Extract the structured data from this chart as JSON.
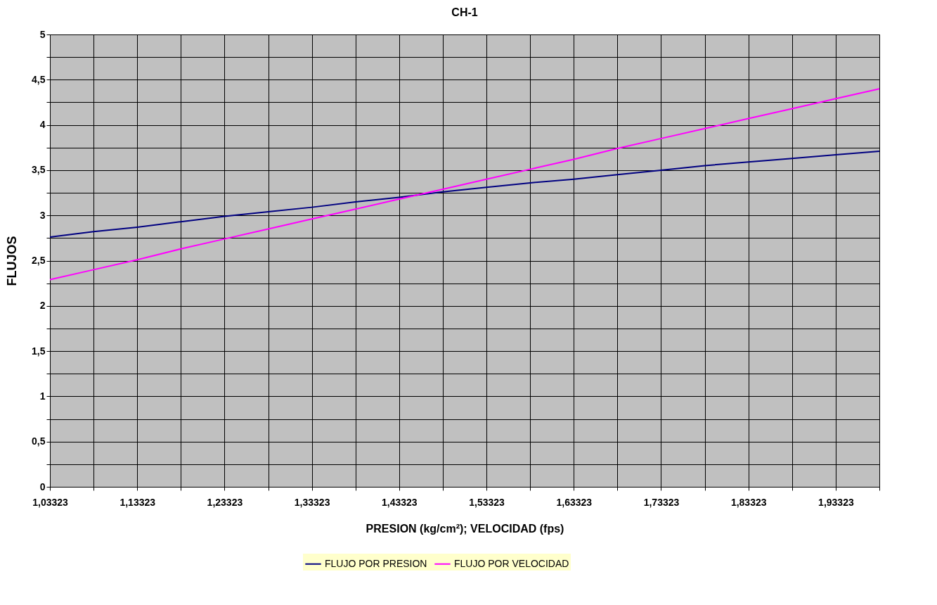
{
  "chart_data": {
    "type": "line",
    "title": "CH-1",
    "xlabel": "PRESION (kg/cm²); VELOCIDAD (fps)",
    "ylabel": "FLUJOS",
    "categories": [
      "1,03323",
      null,
      "1,13323",
      null,
      "1,23323",
      null,
      "1,33323",
      null,
      "1,43323",
      null,
      "1,53323",
      null,
      "1,63323",
      null,
      "1,73323",
      null,
      "1,83323",
      null,
      "1,93323",
      null
    ],
    "series": [
      {
        "name": "FLUJO POR PRESION",
        "color": "#000080",
        "values": [
          2.76,
          2.82,
          2.87,
          2.93,
          2.99,
          3.04,
          3.09,
          3.15,
          3.2,
          3.26,
          3.31,
          3.36,
          3.4,
          3.45,
          3.5,
          3.55,
          3.59,
          3.63,
          3.67,
          3.71
        ]
      },
      {
        "name": "FLUJO POR VELOCIDAD",
        "color": "#ff00ff",
        "values": [
          2.29,
          2.4,
          2.51,
          2.63,
          2.74,
          2.85,
          2.96,
          3.07,
          3.18,
          3.29,
          3.4,
          3.51,
          3.62,
          3.74,
          3.85,
          3.96,
          4.07,
          4.18,
          4.29,
          4.4
        ]
      }
    ],
    "ylim": [
      0,
      5
    ],
    "yticks": [
      0,
      {
        "value": 0.25,
        "label": null
      },
      {
        "value": 0.5,
        "label": "0,5"
      },
      {
        "value": 0.75,
        "label": null
      },
      1,
      {
        "value": 1.25,
        "label": null
      },
      {
        "value": 1.5,
        "label": "1,5"
      },
      {
        "value": 1.75,
        "label": null
      },
      2,
      {
        "value": 2.25,
        "label": null
      },
      {
        "value": 2.5,
        "label": "2,5"
      },
      {
        "value": 2.75,
        "label": null
      },
      3,
      {
        "value": 3.25,
        "label": null
      },
      {
        "value": 3.5,
        "label": "3,5"
      },
      {
        "value": 3.75,
        "label": null
      },
      4,
      {
        "value": 4.25,
        "label": null
      },
      {
        "value": 4.5,
        "label": "4,5"
      },
      {
        "value": 4.75,
        "label": null
      },
      5
    ],
    "grid": true,
    "legend": "bottom",
    "marker": "none",
    "line_style": "solid"
  }
}
